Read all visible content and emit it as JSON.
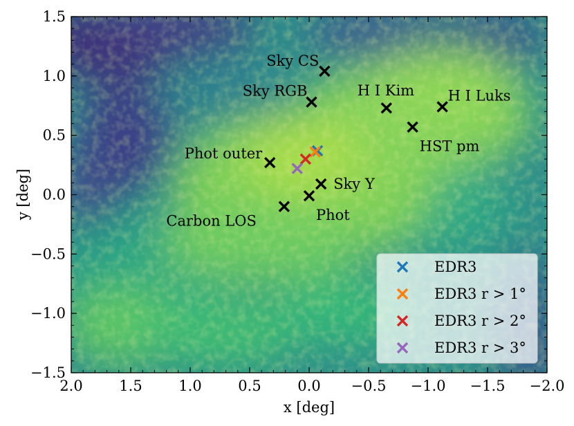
{
  "chart_data": {
    "type": "scatter",
    "title": "",
    "xlabel": "x [deg]",
    "ylabel": "y [deg]",
    "xlim": [
      2.0,
      -2.0
    ],
    "ylim": [
      -1.5,
      1.5
    ],
    "x_ticks": [
      2.0,
      1.5,
      1.0,
      0.5,
      0.0,
      -0.5,
      -1.0,
      -1.5,
      -2.0
    ],
    "y_ticks": [
      -1.5,
      -1.0,
      -0.5,
      0.0,
      0.5,
      1.0,
      1.5
    ],
    "x_tick_labels": [
      "2.0",
      "1.5",
      "1.0",
      "0.5",
      "0.0",
      "−0.5",
      "−1.0",
      "−1.5",
      "−2.0"
    ],
    "y_tick_labels": [
      "−1.5",
      "−1.0",
      "−0.5",
      "0.0",
      "0.5",
      "1.0",
      "1.5"
    ],
    "background": "density map (viridis colormap)",
    "grid": false,
    "legend_position": "bottom-right",
    "marker": "x",
    "annotated_points": [
      {
        "label": "Sky CS",
        "x": -0.13,
        "y": 1.04
      },
      {
        "label": "Sky RGB",
        "x": -0.02,
        "y": 0.78
      },
      {
        "label": "H I Kim",
        "x": -0.65,
        "y": 0.73
      },
      {
        "label": "H I Luks",
        "x": -1.12,
        "y": 0.74
      },
      {
        "label": "HST pm",
        "x": -0.87,
        "y": 0.57
      },
      {
        "label": "Phot outer",
        "x": 0.33,
        "y": 0.27
      },
      {
        "label": "Sky Y",
        "x": -0.1,
        "y": 0.09
      },
      {
        "label": "Phot",
        "x": 0.0,
        "y": -0.01
      },
      {
        "label": "Carbon LOS",
        "x": 0.21,
        "y": -0.1
      }
    ],
    "series": [
      {
        "name": "EDR3",
        "color": "#1f77b4",
        "x": [
          -0.07
        ],
        "y": [
          0.37
        ]
      },
      {
        "name": "EDR3 r > 1°",
        "color": "#ff7f0e",
        "x": [
          -0.05
        ],
        "y": [
          0.36
        ]
      },
      {
        "name": "EDR3 r > 2°",
        "color": "#d62728",
        "x": [
          0.03
        ],
        "y": [
          0.3
        ]
      },
      {
        "name": "EDR3 r > 3°",
        "color": "#9467bd",
        "x": [
          0.1
        ],
        "y": [
          0.22
        ]
      }
    ],
    "annotation_marker_color": "#000000"
  }
}
